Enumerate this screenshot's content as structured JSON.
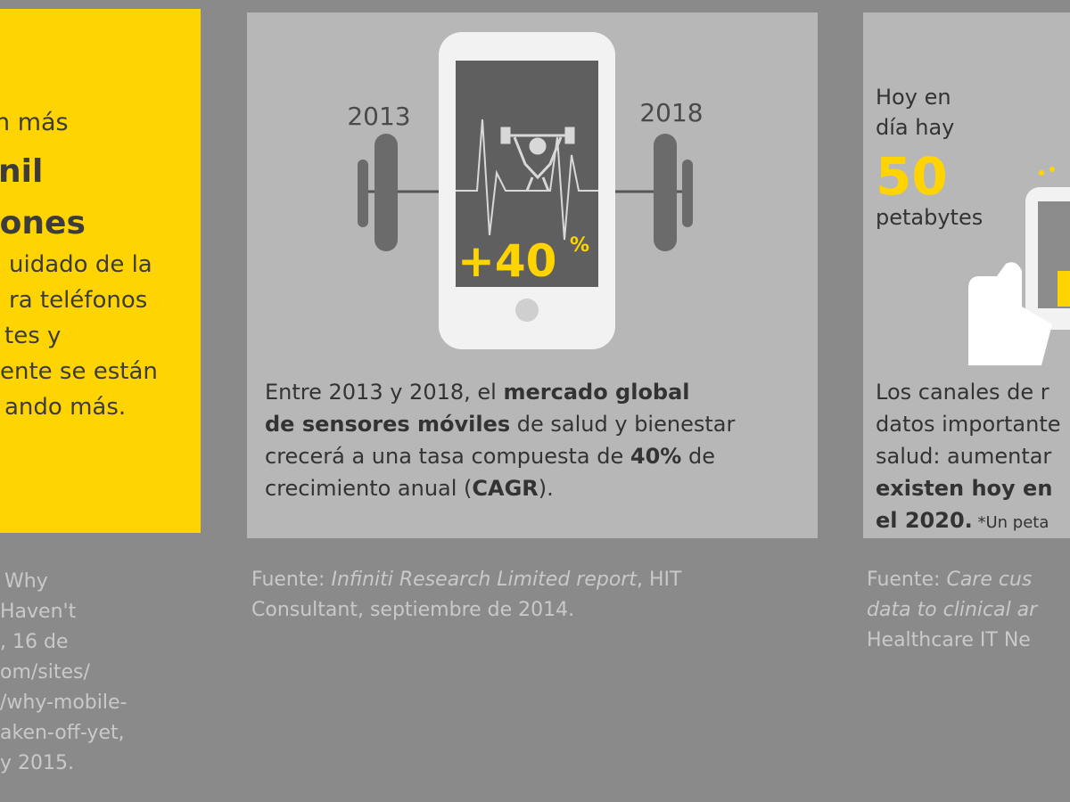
{
  "left": {
    "lines": [
      "n más",
      "nil",
      "ciones"
    ],
    "body": [
      "uidado de la",
      "ra teléfonos",
      "tes y",
      "ente se están",
      "ando más."
    ],
    "source": [
      "Why",
      "Haven't",
      ", 16 de",
      "om/sites/",
      "/why-mobile-",
      "aken-off-yet,",
      "y 2015."
    ]
  },
  "middle": {
    "year_start": "2013",
    "year_end": "2018",
    "growth_label": "+40",
    "growth_sup": "%",
    "body": {
      "l1a": "Entre 2013 y 2018, el ",
      "l1b": "mercado global",
      "l2a": "de sensores móviles",
      "l2b": " de salud y bienestar",
      "l3a": "crecerá a una tasa compuesta de ",
      "l3b": "40%",
      "l3c": " de",
      "l4a": "crecimiento anual (",
      "l4b": "CAGR",
      "l4c": ")."
    },
    "source": {
      "prefix": "Fuente: ",
      "title": "Infiniti Research Limited report",
      "rest": ", HIT",
      "line2": "Consultant, septiembre de 2014."
    }
  },
  "right": {
    "hoy": [
      "Hoy en",
      "día hay"
    ],
    "number": "50",
    "unit": "petabytes",
    "body": {
      "l1": "Los canales de r",
      "l2": "datos importante",
      "l3": "salud: aumentar",
      "l4": "existen hoy en",
      "l5a": "el 2020.",
      "l5b": " *Un peta"
    },
    "source": {
      "prefix": "Fuente: ",
      "italic": "Care cus",
      "line2": "data to clinical ar",
      "line3": "Healthcare IT Ne"
    }
  },
  "colors": {
    "background": "#8a8a8a",
    "yellow": "#ffd400",
    "panel": "#b7b7b7",
    "phone_screen": "#5f5f5f"
  },
  "icons": [
    "barbell-icon",
    "phone-icon",
    "heartbeat-icon",
    "weightlifter-icon",
    "hand-phone-icon"
  ]
}
